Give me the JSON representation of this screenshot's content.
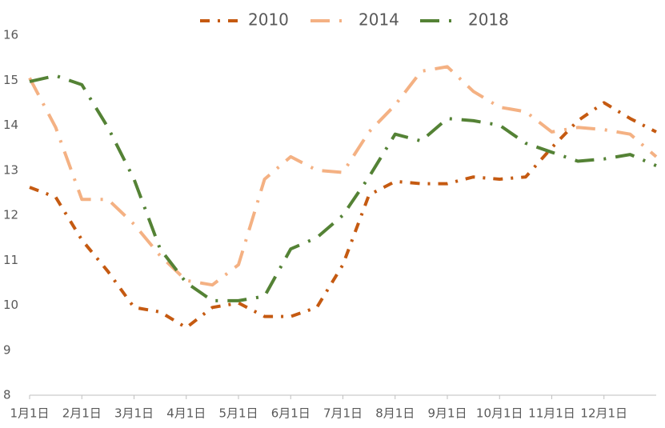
{
  "chart_data": {
    "type": "line",
    "categories": [
      "1月1日",
      null,
      "2月1日",
      null,
      "3月1日",
      null,
      "4月1日",
      null,
      "5月1日",
      null,
      "6月1日",
      null,
      "7月1日",
      null,
      "8月1日",
      null,
      "9月1日",
      null,
      "10月1日",
      null,
      "11月1日",
      null,
      "12月1日",
      null,
      null
    ],
    "series": [
      {
        "name": "2010",
        "color": "#c55a11",
        "values": [
          12.62,
          12.4,
          11.45,
          10.75,
          9.95,
          9.85,
          9.5,
          9.95,
          10.05,
          9.75,
          9.75,
          9.95,
          10.9,
          12.45,
          12.75,
          12.7,
          12.7,
          12.85,
          12.8,
          12.85,
          13.5,
          14.1,
          14.5,
          14.15,
          13.85
        ]
      },
      {
        "name": "2014",
        "color": "#f4b183",
        "values": [
          15.05,
          13.95,
          12.35,
          12.35,
          11.8,
          11.1,
          10.55,
          10.45,
          10.9,
          12.8,
          13.3,
          13.0,
          12.95,
          13.85,
          14.45,
          15.2,
          15.3,
          14.75,
          14.4,
          14.3,
          13.85,
          13.95,
          13.9,
          13.8,
          13.3
        ]
      },
      {
        "name": "2018",
        "color": "#548235",
        "values": [
          14.97,
          15.1,
          14.9,
          13.95,
          12.8,
          11.25,
          10.5,
          10.1,
          10.1,
          10.2,
          11.25,
          11.5,
          12.0,
          12.85,
          13.8,
          13.65,
          14.15,
          14.1,
          14.0,
          13.6,
          13.4,
          13.2,
          13.25,
          13.35,
          13.1
        ]
      }
    ],
    "ylim": [
      8,
      16
    ],
    "yticks": [
      8,
      9,
      10,
      11,
      12,
      13,
      14,
      15,
      16
    ],
    "grid": false,
    "legend": "top"
  }
}
